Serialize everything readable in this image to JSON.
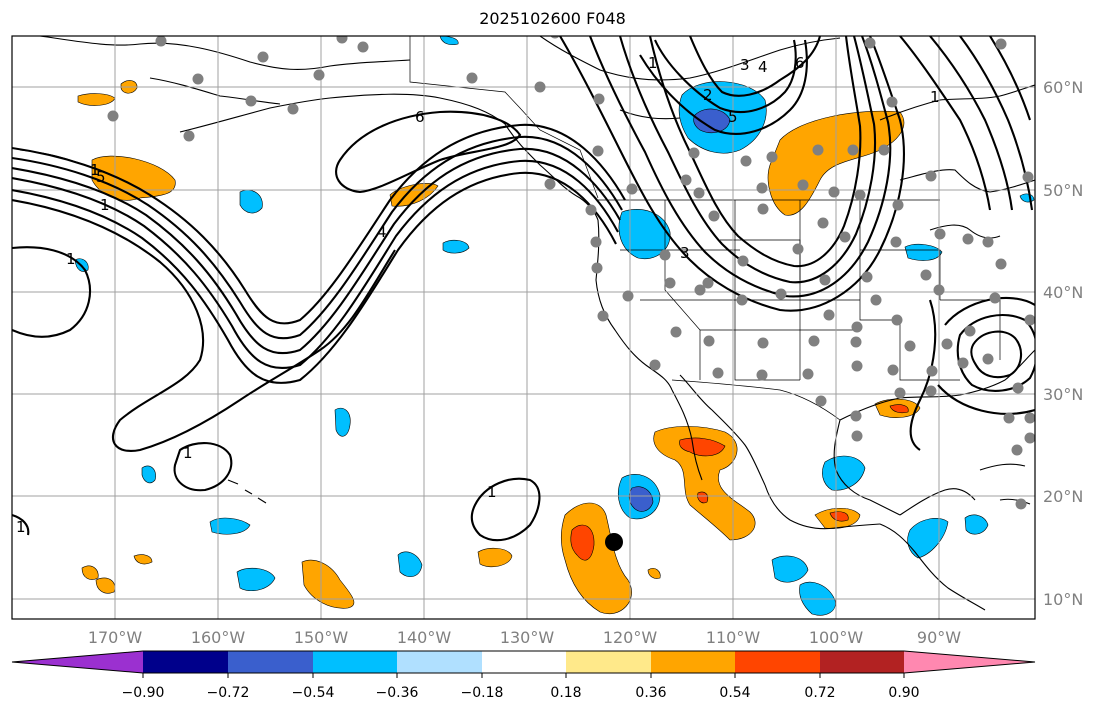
{
  "title": "2025102600 F048",
  "map": {
    "lon_labels": [
      "170°W",
      "160°W",
      "150°W",
      "140°W",
      "130°W",
      "120°W",
      "110°W",
      "100°W",
      "90°W"
    ],
    "lat_labels": [
      "60°N",
      "50°N",
      "40°N",
      "30°N",
      "20°N",
      "10°N"
    ],
    "contour_labels": [
      "1",
      "5",
      "1",
      "1",
      "6",
      "4",
      "1",
      "1",
      "3",
      "4",
      "6",
      "1",
      "2",
      "5",
      "3",
      "1",
      "1"
    ],
    "marker": "storm-center"
  },
  "colorbar": {
    "ticks": [
      "−0.90",
      "−0.72",
      "−0.54",
      "−0.36",
      "−0.18",
      "0.18",
      "0.36",
      "0.54",
      "0.72",
      "0.90"
    ],
    "colors": [
      "#9b30d0",
      "#00008b",
      "#3a5fcd",
      "#00bfff",
      "#b0e0ff",
      "#ffffff",
      "#ffe98a",
      "#ffa500",
      "#ff4500",
      "#b22222",
      "#ff88b0"
    ]
  },
  "colors": {
    "positive_light": "#ffe98a",
    "positive": "#ffa500",
    "positive_strong": "#ff4500",
    "negative_light": "#b0e0ff",
    "negative": "#00bfff",
    "negative_strong": "#3a5fcd",
    "stations": "#808080",
    "grid": "#a0a0a0"
  }
}
